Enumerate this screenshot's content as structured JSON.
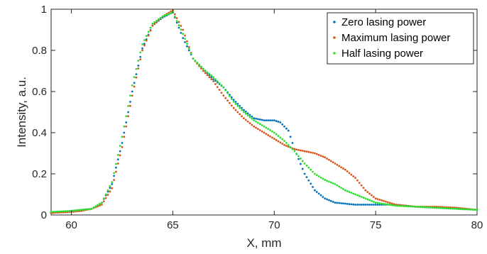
{
  "chart_data": {
    "type": "scatter",
    "title": "",
    "xlabel": "X, mm",
    "ylabel": "Intensity, a.u.",
    "xlim": [
      59,
      80
    ],
    "ylim": [
      0,
      1
    ],
    "xticks": [
      60,
      65,
      70,
      75,
      80
    ],
    "yticks": [
      0,
      0.2,
      0.4,
      0.6,
      0.8,
      1
    ],
    "xtick_labels": [
      "60",
      "65",
      "70",
      "75",
      "80"
    ],
    "ytick_labels": [
      "0",
      "0.2",
      "0.4",
      "0.6",
      "0.8",
      "1"
    ],
    "grid": false,
    "box": true,
    "legend_position": "top-right",
    "series": [
      {
        "name": "Zero lasing power",
        "color": "#0072BD",
        "x": [
          59,
          60,
          60.5,
          61,
          61.5,
          62,
          62.5,
          63,
          63.5,
          64,
          64.5,
          65,
          65.5,
          66,
          66.5,
          67,
          67.5,
          68,
          68.5,
          69,
          69.5,
          70,
          70.3,
          70.7,
          71,
          71.5,
          72,
          72.5,
          73,
          73.5,
          74,
          75,
          76,
          77,
          78,
          79,
          80
        ],
        "y": [
          0.01,
          0.02,
          0.025,
          0.03,
          0.06,
          0.15,
          0.35,
          0.6,
          0.81,
          0.92,
          0.96,
          0.985,
          0.86,
          0.76,
          0.71,
          0.66,
          0.62,
          0.56,
          0.51,
          0.47,
          0.46,
          0.46,
          0.45,
          0.41,
          0.32,
          0.2,
          0.12,
          0.08,
          0.06,
          0.055,
          0.05,
          0.05,
          0.05,
          0.04,
          0.035,
          0.03,
          0.025
        ]
      },
      {
        "name": "Maximum lasing power",
        "color": "#D95319",
        "x": [
          59,
          60,
          60.5,
          61,
          61.5,
          62,
          62.5,
          63,
          63.5,
          64,
          64.5,
          65,
          65.5,
          66,
          66.5,
          67,
          67.5,
          68,
          68.5,
          69,
          69.5,
          70,
          70.5,
          71,
          71.5,
          72,
          72.5,
          73,
          73.5,
          74,
          74.5,
          75,
          76,
          77,
          78,
          79,
          80
        ],
        "y": [
          0.01,
          0.015,
          0.02,
          0.03,
          0.05,
          0.13,
          0.33,
          0.58,
          0.8,
          0.92,
          0.965,
          0.995,
          0.9,
          0.76,
          0.7,
          0.65,
          0.58,
          0.52,
          0.47,
          0.43,
          0.4,
          0.37,
          0.34,
          0.32,
          0.31,
          0.3,
          0.28,
          0.25,
          0.22,
          0.18,
          0.12,
          0.08,
          0.05,
          0.04,
          0.04,
          0.035,
          0.025
        ]
      },
      {
        "name": "Half lasing power",
        "color": "#2BE02B",
        "x": [
          59,
          60,
          60.5,
          61,
          61.5,
          62,
          62.5,
          63,
          63.5,
          64,
          64.5,
          65,
          65.5,
          66,
          66.5,
          67,
          67.5,
          68,
          68.5,
          69,
          69.5,
          70,
          70.5,
          71,
          71.5,
          72,
          72.5,
          73,
          73.5,
          74,
          74.5,
          75,
          76,
          77,
          78,
          79,
          80
        ],
        "y": [
          0.015,
          0.02,
          0.025,
          0.03,
          0.06,
          0.16,
          0.38,
          0.63,
          0.83,
          0.93,
          0.965,
          0.985,
          0.88,
          0.76,
          0.71,
          0.67,
          0.62,
          0.55,
          0.5,
          0.46,
          0.43,
          0.4,
          0.36,
          0.31,
          0.25,
          0.2,
          0.17,
          0.15,
          0.12,
          0.1,
          0.08,
          0.06,
          0.045,
          0.04,
          0.035,
          0.03,
          0.025
        ]
      }
    ]
  }
}
